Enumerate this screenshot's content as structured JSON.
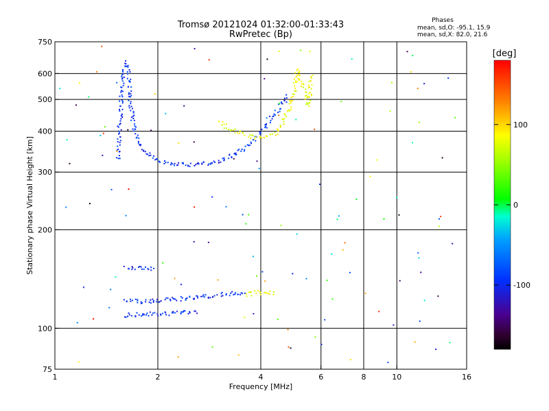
{
  "chart_data": {
    "type": "scatter",
    "title": "Tromsø 20121024 01:32:00-01:33:43",
    "subtitle": "RwPretec (Bp)",
    "xlabel": "Frequency [MHz]",
    "ylabel": "Stationary phase Virtual Height [km]",
    "x_scale": "log",
    "y_scale": "log",
    "xlim": [
      1,
      16
    ],
    "ylim": [
      75,
      750
    ],
    "x_ticks": [
      1,
      2,
      4,
      6,
      8,
      10,
      16
    ],
    "y_ticks": [
      75,
      100,
      200,
      300,
      400,
      500,
      600,
      750
    ],
    "x_gridlines": [
      2,
      4,
      6,
      8,
      10
    ],
    "y_gridlines": [
      100,
      200,
      300,
      400,
      500,
      600
    ],
    "grid": true,
    "stats": {
      "title": "Phases",
      "line1": "mean, sd,O: -95.1, 15.9",
      "line2": "mean, sd,X:  82.0, 21.6"
    },
    "colorbar": {
      "label": "[deg]",
      "ticks": [
        "100",
        "0",
        "-100"
      ],
      "tick_values": [
        100,
        0,
        -100
      ],
      "range": [
        -180,
        180
      ],
      "colormap": "rainbow (black-purple-blue-cyan-green-yellow-red)"
    },
    "traces": [
      {
        "desc": "F-layer O-mode cusp",
        "phase": -95,
        "points": [
          [
            1.52,
            330
          ],
          [
            1.53,
            380
          ],
          [
            1.55,
            450
          ],
          [
            1.57,
            560
          ],
          [
            1.59,
            650
          ],
          [
            1.62,
            640
          ],
          [
            1.64,
            560
          ],
          [
            1.66,
            480
          ],
          [
            1.69,
            420
          ],
          [
            1.72,
            390
          ],
          [
            1.76,
            370
          ],
          [
            1.82,
            350
          ],
          [
            1.9,
            335
          ],
          [
            2.0,
            325
          ],
          [
            2.2,
            320
          ],
          [
            2.5,
            318
          ],
          [
            2.8,
            320
          ],
          [
            3.0,
            325
          ],
          [
            3.2,
            335
          ],
          [
            3.4,
            345
          ],
          [
            3.6,
            360
          ],
          [
            3.8,
            380
          ],
          [
            4.0,
            400
          ],
          [
            4.2,
            430
          ],
          [
            4.5,
            470
          ],
          [
            4.8,
            520
          ]
        ]
      },
      {
        "desc": "F-layer X-mode branch",
        "phase": 82,
        "points": [
          [
            3.0,
            430
          ],
          [
            3.2,
            410
          ],
          [
            3.5,
            395
          ],
          [
            3.8,
            385
          ],
          [
            4.1,
            385
          ],
          [
            4.4,
            395
          ],
          [
            4.6,
            420
          ],
          [
            4.8,
            470
          ],
          [
            5.0,
            540
          ],
          [
            5.1,
            620
          ],
          [
            5.5,
            480
          ],
          [
            5.6,
            600
          ]
        ]
      },
      {
        "desc": "E-layer trace upper",
        "phase": -95,
        "points": [
          [
            1.6,
            155
          ],
          [
            1.7,
            154
          ],
          [
            1.8,
            153
          ],
          [
            1.95,
            152
          ]
        ]
      },
      {
        "desc": "E-layer trace middle",
        "phase": -95,
        "points": [
          [
            1.6,
            122
          ],
          [
            1.8,
            121
          ],
          [
            2.0,
            122
          ],
          [
            2.4,
            124
          ],
          [
            2.8,
            126
          ],
          [
            3.2,
            128
          ],
          [
            3.6,
            129
          ]
        ]
      },
      {
        "desc": "E-layer trace lower",
        "phase": -95,
        "points": [
          [
            1.6,
            110
          ],
          [
            1.8,
            111
          ],
          [
            2.0,
            111
          ],
          [
            2.3,
            112
          ],
          [
            2.6,
            113
          ]
        ]
      },
      {
        "desc": "E-layer X-mode",
        "phase": 82,
        "points": [
          [
            3.6,
            127
          ],
          [
            3.8,
            129
          ],
          [
            4.0,
            129
          ],
          [
            4.4,
            129
          ]
        ]
      }
    ]
  }
}
